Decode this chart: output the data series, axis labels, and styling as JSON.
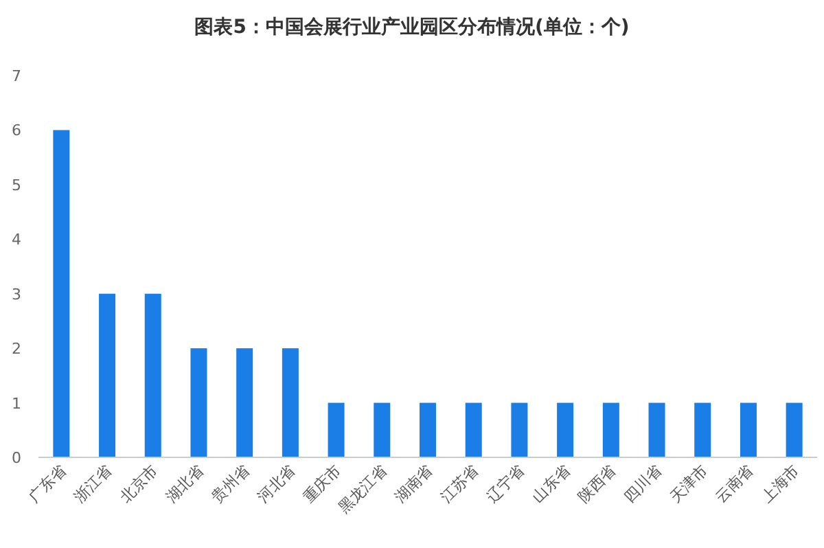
{
  "chart_data": {
    "type": "bar",
    "title": "图表5：中国会展行业产业园区分布情况(单位：个)",
    "categories": [
      "广东省",
      "浙江省",
      "北京市",
      "湖北省",
      "贵州省",
      "河北省",
      "重庆市",
      "黑龙江省",
      "湖南省",
      "江苏省",
      "辽宁省",
      "山东省",
      "陕西省",
      "四川省",
      "天津市",
      "云南省",
      "上海市"
    ],
    "values": [
      6,
      3,
      3,
      2,
      2,
      2,
      1,
      1,
      1,
      1,
      1,
      1,
      1,
      1,
      1,
      1,
      1
    ],
    "color": "#1a7ee6",
    "ylim": [
      0,
      7
    ],
    "yticks": [
      0,
      1,
      2,
      3,
      4,
      5,
      6,
      7
    ],
    "grid": false
  }
}
